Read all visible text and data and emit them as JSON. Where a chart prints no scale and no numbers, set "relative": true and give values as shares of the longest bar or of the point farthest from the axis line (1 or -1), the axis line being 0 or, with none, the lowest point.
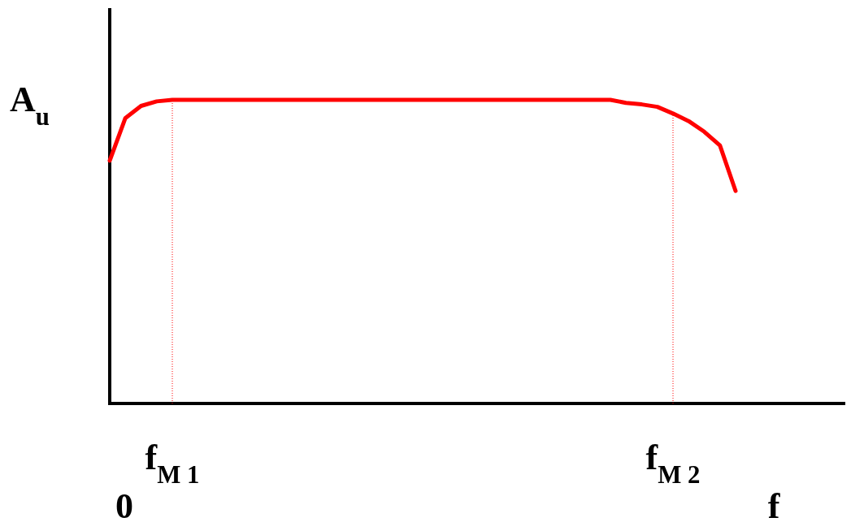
{
  "chart_data": {
    "type": "line",
    "relative": true,
    "xlabel": "f",
    "ylabel": "A$_{u}$",
    "annotations": [
      "0"
    ],
    "categories": [
      null,
      null,
      null,
      null,
      "f$_{M 1}$",
      null,
      null,
      null,
      null,
      null,
      null,
      null,
      null,
      null,
      null,
      null,
      null,
      null,
      null,
      null,
      null,
      null,
      null,
      null,
      null,
      null,
      null,
      null,
      null,
      null,
      null,
      null,
      null,
      null,
      null,
      null,
      "f$_{M 2}$",
      null,
      null,
      null,
      null
    ],
    "series": [
      {
        "color": "#ff0000",
        "values": [
          0.8,
          0.94,
          0.98,
          0.995,
          1,
          1,
          1,
          1,
          1,
          1,
          1,
          1,
          1,
          1,
          1,
          1,
          1,
          1,
          1,
          1,
          1,
          1,
          1,
          1,
          1,
          1,
          1,
          1,
          1,
          1,
          1,
          1,
          1,
          0.99,
          0.985,
          0.977,
          0.955,
          0.93,
          0.895,
          0.85,
          0.7
        ]
      }
    ],
    "ref_lines": [
      {
        "axis": "x",
        "value": "f$_{M 1}$",
        "color": "#ff0000",
        "line_style": "dotted"
      },
      {
        "axis": "x",
        "value": "f$_{M 2}$",
        "color": "#ff0000",
        "line_style": "dotted"
      }
    ],
    "marker": "none",
    "line_style": "solid"
  }
}
